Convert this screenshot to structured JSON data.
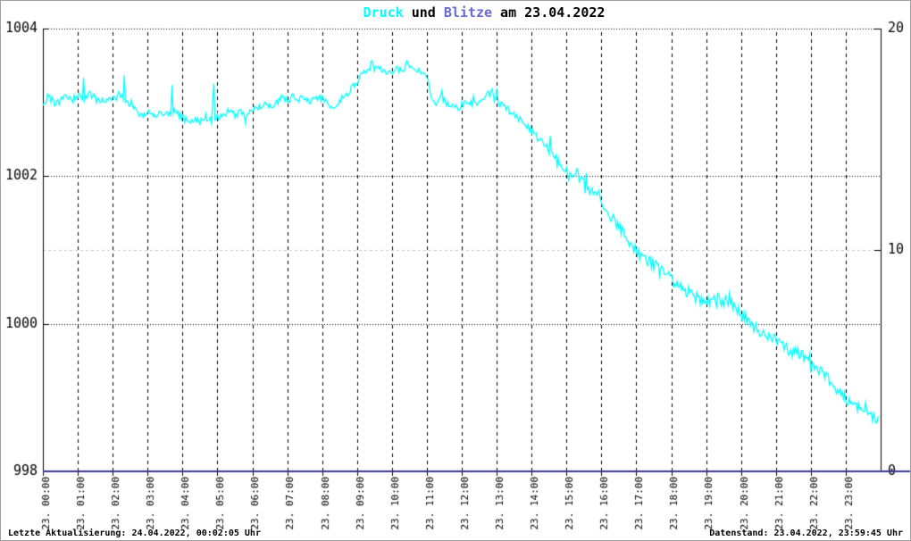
{
  "title": {
    "druck": "Druck",
    "mid": " und ",
    "blitze": "Blitze",
    "date": " am 23.04.2022"
  },
  "footer": {
    "left": "Letzte Aktualisierung: 24.04.2022, 00:02:05 Uhr",
    "right": "Datenstand: 23.04.2022, 23:59:45 Uhr"
  },
  "colors": {
    "druck_series": "#00ffff",
    "blitze_series": "#3a3a94",
    "blitze_title": "#6a6ad4",
    "grid_black": "#000000",
    "grid_gray": "#c8c8c8",
    "axis": "#000000",
    "frame_border": "#a0a0a0",
    "background": "#ffffff"
  },
  "chart_data": {
    "type": "line",
    "title": "Druck und Blitze am 23.04.2022",
    "grid": true,
    "x_unit": "time of day 23.04.2022, minutes 0-1440",
    "x_range_minutes": [
      0,
      1440
    ],
    "x_tick_labels": [
      "23. 00:00",
      "23. 01:00",
      "23. 02:00",
      "23. 03:00",
      "23. 04:00",
      "23. 05:00",
      "23. 06:00",
      "23. 07:00",
      "23. 08:00",
      "23. 09:00",
      "23. 10:00",
      "23. 11:00",
      "23. 12:00",
      "23. 13:00",
      "23. 14:00",
      "23. 15:00",
      "23. 16:00",
      "23. 17:00",
      "23. 18:00",
      "23. 19:00",
      "23. 20:00",
      "23. 21:00",
      "23. 22:00",
      "23. 23:00"
    ],
    "y_left": {
      "name": "Druck (hPa)",
      "min": 998,
      "max": 1004,
      "ticks": [
        998,
        1000,
        1002,
        1004
      ],
      "dotted_gridlines_at": [
        1000,
        1002,
        1004
      ]
    },
    "y_right": {
      "name": "Blitze",
      "min": 0,
      "max": 20,
      "ticks": [
        0,
        10,
        20
      ],
      "gray_gridline_at": 10
    },
    "noise_seed": 42,
    "series": [
      {
        "name": "Druck",
        "axis": "left",
        "color": "#00ffff",
        "noise_amplitude_hpa": 0.05,
        "trend_points": [
          [
            0,
            1003.0
          ],
          [
            10,
            1003.08
          ],
          [
            20,
            1002.98
          ],
          [
            30,
            1003.02
          ],
          [
            40,
            1003.1
          ],
          [
            50,
            1003.05
          ],
          [
            60,
            1003.08
          ],
          [
            68,
            1003.05
          ],
          [
            70,
            1003.33
          ],
          [
            72,
            1003.05
          ],
          [
            80,
            1003.12
          ],
          [
            90,
            1003.05
          ],
          [
            100,
            1003.0
          ],
          [
            110,
            1003.06
          ],
          [
            120,
            1003.03
          ],
          [
            130,
            1003.1
          ],
          [
            138,
            1003.08
          ],
          [
            140,
            1003.34
          ],
          [
            142,
            1003.05
          ],
          [
            150,
            1002.95
          ],
          [
            160,
            1002.88
          ],
          [
            170,
            1002.84
          ],
          [
            180,
            1002.86
          ],
          [
            190,
            1002.8
          ],
          [
            200,
            1002.85
          ],
          [
            210,
            1002.82
          ],
          [
            220,
            1002.88
          ],
          [
            222,
            1003.28
          ],
          [
            224,
            1002.88
          ],
          [
            235,
            1002.82
          ],
          [
            240,
            1002.8
          ],
          [
            250,
            1002.72
          ],
          [
            260,
            1002.78
          ],
          [
            270,
            1002.74
          ],
          [
            280,
            1002.8
          ],
          [
            290,
            1002.76
          ],
          [
            294,
            1003.3
          ],
          [
            296,
            1002.8
          ],
          [
            310,
            1002.82
          ],
          [
            320,
            1002.88
          ],
          [
            330,
            1002.82
          ],
          [
            340,
            1002.88
          ],
          [
            350,
            1002.84
          ],
          [
            360,
            1002.88
          ],
          [
            370,
            1002.92
          ],
          [
            380,
            1002.96
          ],
          [
            390,
            1002.94
          ],
          [
            400,
            1003.0
          ],
          [
            410,
            1003.05
          ],
          [
            420,
            1003.02
          ],
          [
            430,
            1003.08
          ],
          [
            440,
            1003.04
          ],
          [
            450,
            1003.08
          ],
          [
            460,
            1003.02
          ],
          [
            470,
            1003.06
          ],
          [
            480,
            1003.05
          ],
          [
            490,
            1002.98
          ],
          [
            500,
            1002.92
          ],
          [
            510,
            1003.02
          ],
          [
            520,
            1003.1
          ],
          [
            530,
            1003.18
          ],
          [
            540,
            1003.28
          ],
          [
            550,
            1003.38
          ],
          [
            560,
            1003.42
          ],
          [
            565,
            1003.55
          ],
          [
            570,
            1003.45
          ],
          [
            580,
            1003.46
          ],
          [
            590,
            1003.42
          ],
          [
            600,
            1003.4
          ],
          [
            610,
            1003.46
          ],
          [
            620,
            1003.44
          ],
          [
            625,
            1003.56
          ],
          [
            630,
            1003.48
          ],
          [
            640,
            1003.44
          ],
          [
            650,
            1003.4
          ],
          [
            660,
            1003.35
          ],
          [
            665,
            1003.18
          ],
          [
            670,
            1003.05
          ],
          [
            675,
            1002.98
          ],
          [
            685,
            1003.08
          ],
          [
            695,
            1002.96
          ],
          [
            705,
            1003.0
          ],
          [
            715,
            1002.92
          ],
          [
            720,
            1002.96
          ],
          [
            730,
            1003.02
          ],
          [
            740,
            1002.95
          ],
          [
            750,
            1003.0
          ],
          [
            760,
            1003.05
          ],
          [
            768,
            1003.12
          ],
          [
            772,
            1003.22
          ],
          [
            776,
            1003.08
          ],
          [
            780,
            1003.02
          ],
          [
            790,
            1002.95
          ],
          [
            800,
            1002.9
          ],
          [
            810,
            1002.84
          ],
          [
            820,
            1002.76
          ],
          [
            830,
            1002.68
          ],
          [
            840,
            1002.62
          ],
          [
            850,
            1002.52
          ],
          [
            860,
            1002.44
          ],
          [
            870,
            1002.36
          ],
          [
            880,
            1002.26
          ],
          [
            890,
            1002.14
          ],
          [
            900,
            1002.05
          ],
          [
            910,
            1002.0
          ],
          [
            915,
            1002.1
          ],
          [
            920,
            1001.98
          ],
          [
            930,
            1001.9
          ],
          [
            940,
            1001.84
          ],
          [
            950,
            1001.76
          ],
          [
            960,
            1001.7
          ],
          [
            965,
            1001.55
          ],
          [
            970,
            1001.48
          ],
          [
            980,
            1001.4
          ],
          [
            990,
            1001.32
          ],
          [
            1000,
            1001.2
          ],
          [
            1010,
            1001.1
          ],
          [
            1020,
            1001.0
          ],
          [
            1030,
            1000.92
          ],
          [
            1040,
            1000.85
          ],
          [
            1050,
            1000.8
          ],
          [
            1060,
            1000.72
          ],
          [
            1070,
            1000.66
          ],
          [
            1080,
            1000.6
          ],
          [
            1090,
            1000.52
          ],
          [
            1100,
            1000.46
          ],
          [
            1110,
            1000.44
          ],
          [
            1120,
            1000.38
          ],
          [
            1130,
            1000.32
          ],
          [
            1140,
            1000.3
          ],
          [
            1150,
            1000.33
          ],
          [
            1160,
            1000.3
          ],
          [
            1170,
            1000.32
          ],
          [
            1175,
            1000.38
          ],
          [
            1180,
            1000.28
          ],
          [
            1190,
            1000.22
          ],
          [
            1200,
            1000.15
          ],
          [
            1210,
            1000.05
          ],
          [
            1220,
            999.98
          ],
          [
            1230,
            999.92
          ],
          [
            1240,
            999.86
          ],
          [
            1250,
            999.82
          ],
          [
            1260,
            999.8
          ],
          [
            1270,
            999.72
          ],
          [
            1280,
            999.66
          ],
          [
            1290,
            999.62
          ],
          [
            1300,
            999.58
          ],
          [
            1310,
            999.54
          ],
          [
            1320,
            999.5
          ],
          [
            1330,
            999.4
          ],
          [
            1340,
            999.32
          ],
          [
            1350,
            999.25
          ],
          [
            1360,
            999.16
          ],
          [
            1370,
            999.08
          ],
          [
            1380,
            999.0
          ],
          [
            1390,
            998.92
          ],
          [
            1395,
            998.98
          ],
          [
            1400,
            998.88
          ],
          [
            1410,
            998.82
          ],
          [
            1415,
            998.92
          ],
          [
            1420,
            998.78
          ],
          [
            1430,
            998.7
          ],
          [
            1439,
            998.66
          ]
        ]
      },
      {
        "name": "Blitze",
        "axis": "right",
        "color": "#3a3a94",
        "noise_amplitude_hpa": 0,
        "trend_points": [
          [
            0,
            0
          ],
          [
            1439,
            0
          ]
        ]
      }
    ]
  }
}
